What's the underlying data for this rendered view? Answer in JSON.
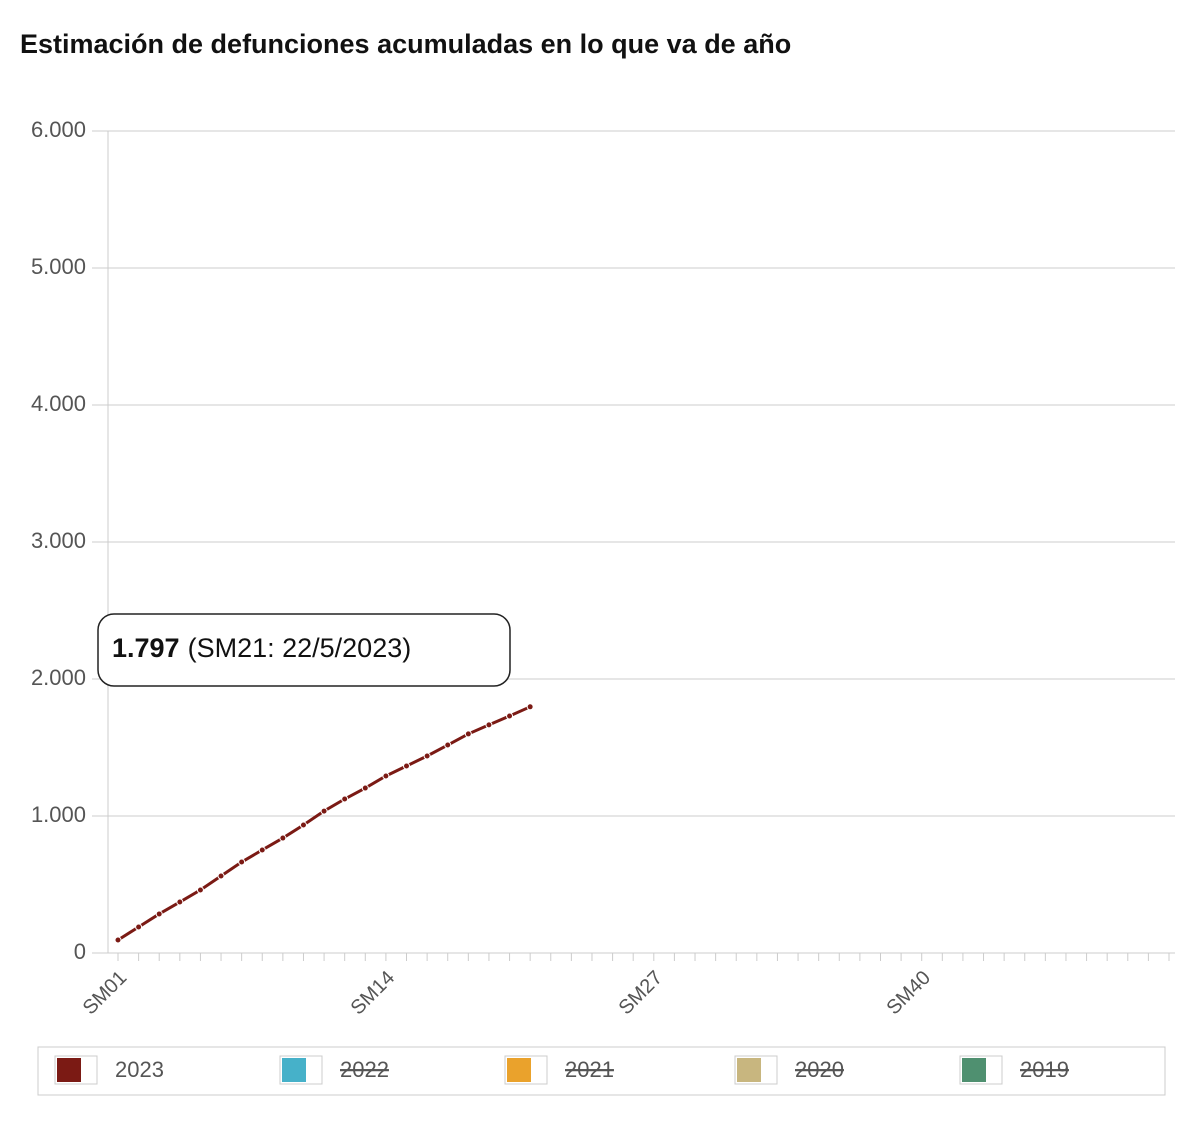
{
  "chart_data": {
    "type": "line",
    "title": "Estimación de defunciones acumuladas en lo que va de año",
    "categories": [
      "SM01",
      null,
      null,
      null,
      null,
      null,
      null,
      null,
      null,
      null,
      null,
      null,
      null,
      "SM14",
      null,
      null,
      null,
      null,
      null,
      null,
      null,
      null,
      null,
      null,
      null,
      null,
      "SM27",
      null,
      null,
      null,
      null,
      null,
      null,
      null,
      null,
      null,
      null,
      null,
      null,
      "SM40",
      null,
      null,
      null,
      null,
      null,
      null,
      null,
      null,
      null,
      null,
      null,
      null
    ],
    "series": [
      {
        "name": "2023",
        "color": "#7b1a14",
        "values": [
          95,
          190,
          285,
          372,
          460,
          562,
          664,
          752,
          839,
          934,
          1036,
          1124,
          1204,
          1292,
          1365,
          1438,
          1518,
          1599,
          1665,
          1730,
          1797,
          null,
          null,
          null,
          null,
          null,
          null,
          null,
          null,
          null,
          null,
          null,
          null,
          null,
          null,
          null,
          null,
          null,
          null,
          null,
          null,
          null,
          null,
          null,
          null,
          null,
          null,
          null,
          null,
          null,
          null,
          null
        ]
      }
    ],
    "legend": [
      {
        "name": "2023",
        "color": "#7b1a14",
        "hidden": false
      },
      {
        "name": "2022",
        "color": "#46b1c9",
        "hidden": true
      },
      {
        "name": "2021",
        "color": "#eaa22c",
        "hidden": true
      },
      {
        "name": "2020",
        "color": "#c8b67f",
        "hidden": true
      },
      {
        "name": "2019",
        "color": "#4f9070",
        "hidden": true
      }
    ],
    "annotation": {
      "value_label": "1.797",
      "detail": "(SM21: 22/5/2023)",
      "index": 20
    },
    "ylim": [
      0,
      6000
    ],
    "yticks": [
      0,
      {
        "value": 1000,
        "label": "1.000"
      },
      {
        "value": 2000,
        "label": "2.000"
      },
      {
        "value": 3000,
        "label": "3.000"
      },
      {
        "value": 4000,
        "label": "4.000"
      },
      {
        "value": 5000,
        "label": "5.000"
      },
      {
        "value": 6000,
        "label": "6.000"
      }
    ],
    "grid": true
  }
}
